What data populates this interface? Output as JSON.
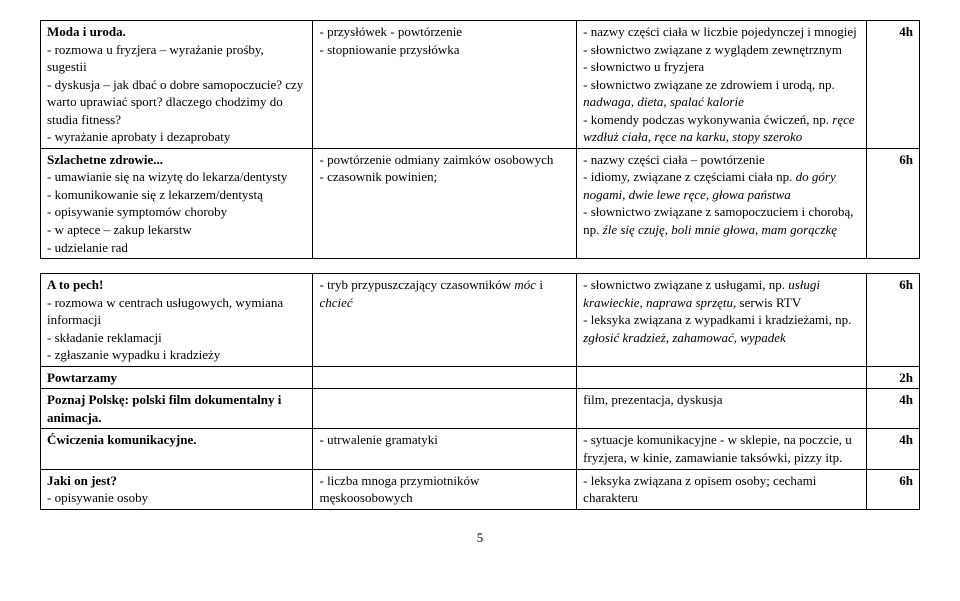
{
  "rows": [
    {
      "c1_title": "Moda i uroda.",
      "c1_body": "- rozmowa u fryzjera – wyrażanie prośby, sugestii\n- dyskusja – jak dbać o dobre samopoczucie? czy warto uprawiać sport? dlaczego chodzimy do studia fitness?\n- wyrażanie aprobaty i dezaprobaty",
      "c2": "- przysłówek - powtórzenie\n- stopniowanie przysłówka",
      "c3": "- nazwy części ciała w liczbie pojedynczej i mnogiej\n- słownictwo związane z wyglądem zewnętrznym\n- słownictwo u fryzjera\n- słownictwo związane ze zdrowiem i urodą, np. <i>nadwaga, dieta, spalać kalorie</i>\n- komendy podczas wykonywania ćwiczeń, np. <i>ręce wzdłuż ciała, ręce na karku, stopy szeroko</i>",
      "c4": "4h"
    },
    {
      "c1_title": "Szlachetne zdrowie...",
      "c1_body": "- umawianie się na wizytę do lekarza/dentysty\n- komunikowanie się z lekarzem/dentystą\n- opisywanie symptomów choroby\n- w aptece – zakup lekarstw\n- udzielanie rad",
      "c2": "- powtórzenie odmiany zaimków osobowych\n- czasownik powinien;",
      "c3": "- nazwy części ciała – powtórzenie\n- idiomy, związane z częściami ciała np. <i>do góry nogami, dwie lewe ręce, głowa państwa</i>\n- słownictwo związane z samopoczuciem i chorobą, np. <i>źle się czuję, boli mnie głowa, mam gorączkę</i>",
      "c4": "6h"
    },
    {
      "c1_title": "A to pech!",
      "c1_body": "- rozmowa w centrach usługowych, wymiana informacji\n- składanie reklamacji\n- zgłaszanie wypadku i kradzieży",
      "c2": "- tryb przypuszczający czasowników <i>móc</i> i <i>chcieć</i>",
      "c3": "- słownictwo związane z usługami, np. <i>usługi krawieckie, naprawa sprzętu</i>, serwis RTV\n- leksyka związana z wypadkami i kradzieżami, np. <i>zgłosić kradzież, zahamować, wypadek</i>",
      "c4": "6h"
    },
    {
      "c1_title": "Powtarzamy",
      "c1_body": "",
      "c2": "",
      "c3": "",
      "c4": "2h"
    },
    {
      "c1_title": "Poznaj Polskę: polski film dokumentalny i animacja.",
      "c1_body": "",
      "c2": "",
      "c3": "film, prezentacja, dyskusja",
      "c4": "4h"
    },
    {
      "c1_title": "Ćwiczenia komunikacyjne.",
      "c1_body": "",
      "c2": "- utrwalenie gramatyki",
      "c3": "- sytuacje komunikacyjne - w sklepie, na poczcie, u fryzjera, w kinie, zamawianie taksówki, pizzy itp.",
      "c4": "4h"
    },
    {
      "c1_title": "Jaki on jest?",
      "c1_body": "- opisywanie osoby",
      "c2": "- liczba mnoga przymiotników męskoosobowych",
      "c3": "- leksyka związana z opisem osoby; cechami charakteru",
      "c4": "6h"
    }
  ],
  "pagenum": "5"
}
